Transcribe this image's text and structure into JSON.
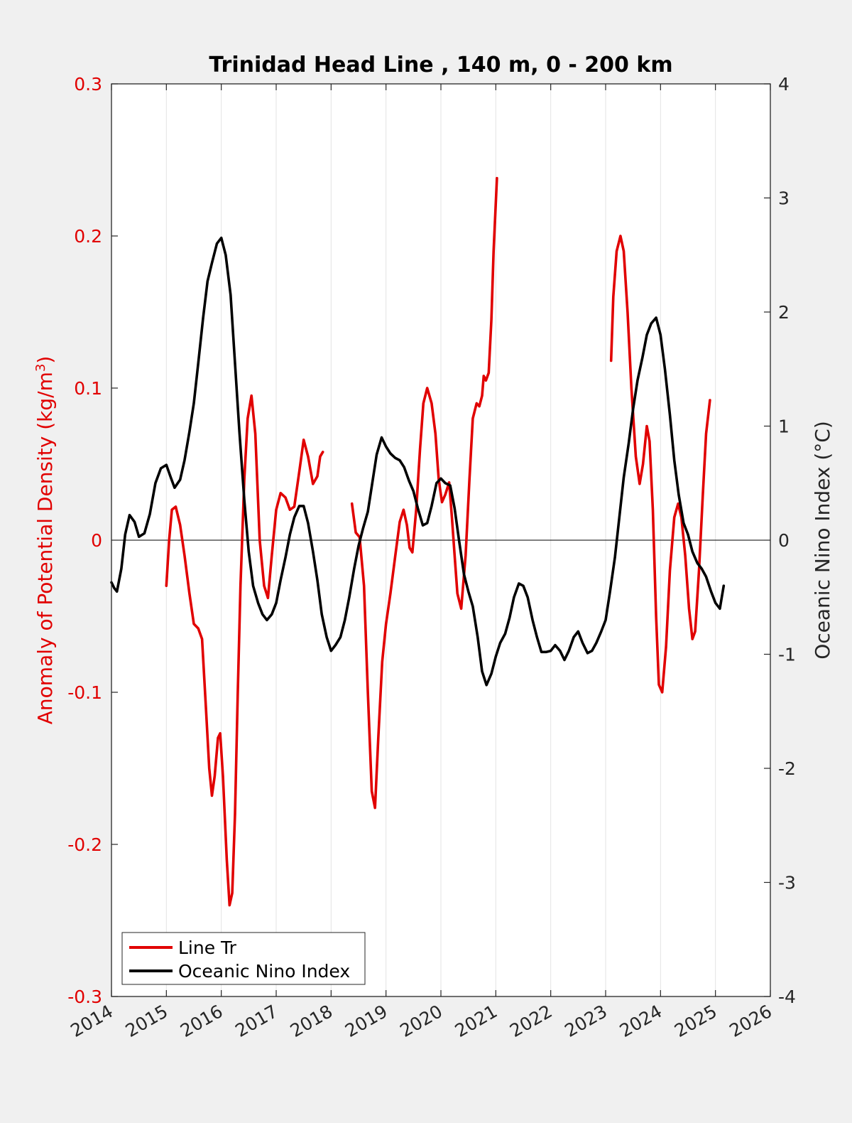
{
  "chart_data": {
    "type": "line",
    "title": "Trinidad Head Line , 140 m, 0 - 200 km",
    "xlim": [
      2014,
      2026
    ],
    "x_ticks": [
      "2014",
      "2015",
      "2016",
      "2017",
      "2018",
      "2019",
      "2020",
      "2021",
      "2022",
      "2023",
      "2024",
      "2025",
      "2026"
    ],
    "y_left": {
      "label_main": "Anomaly of Potential Density (kg/m",
      "label_sup": "3",
      "label_tail": ")",
      "lim": [
        -0.3,
        0.3
      ],
      "ticks": [
        "0.3",
        "0.2",
        "0.1",
        "0",
        "-0.1",
        "-0.2",
        "-0.3"
      ],
      "color": "#e10000"
    },
    "y_right": {
      "label": "Oceanic Nino Index (°C)",
      "lim": [
        -4,
        4
      ],
      "ticks": [
        "4",
        "3",
        "2",
        "1",
        "0",
        "-1",
        "-2",
        "-3",
        "-4"
      ],
      "color": "#000000"
    },
    "grid": "vertical",
    "legend_placement": "bottom-left",
    "series": [
      {
        "name": "Line Tr",
        "axis": "left",
        "color": "#e10000",
        "segments": [
          [
            [
              2015.0,
              -0.03
            ],
            [
              2015.05,
              0.0
            ],
            [
              2015.1,
              0.02
            ],
            [
              2015.17,
              0.022
            ],
            [
              2015.25,
              0.01
            ],
            [
              2015.33,
              -0.01
            ],
            [
              2015.42,
              -0.035
            ],
            [
              2015.5,
              -0.055
            ],
            [
              2015.58,
              -0.058
            ],
            [
              2015.65,
              -0.065
            ],
            [
              2015.72,
              -0.11
            ],
            [
              2015.78,
              -0.15
            ],
            [
              2015.83,
              -0.168
            ],
            [
              2015.88,
              -0.155
            ],
            [
              2015.94,
              -0.13
            ],
            [
              2015.98,
              -0.127
            ],
            [
              2016.03,
              -0.155
            ],
            [
              2016.1,
              -0.21
            ],
            [
              2016.15,
              -0.24
            ],
            [
              2016.2,
              -0.232
            ],
            [
              2016.25,
              -0.18
            ],
            [
              2016.3,
              -0.1
            ],
            [
              2016.35,
              -0.03
            ],
            [
              2016.42,
              0.04
            ],
            [
              2016.48,
              0.08
            ],
            [
              2016.55,
              0.095
            ],
            [
              2016.62,
              0.07
            ],
            [
              2016.7,
              0.0
            ],
            [
              2016.78,
              -0.03
            ],
            [
              2016.85,
              -0.038
            ],
            [
              2016.92,
              -0.01
            ],
            [
              2017.0,
              0.02
            ],
            [
              2017.08,
              0.031
            ],
            [
              2017.17,
              0.028
            ],
            [
              2017.25,
              0.02
            ],
            [
              2017.33,
              0.022
            ],
            [
              2017.42,
              0.045
            ],
            [
              2017.5,
              0.066
            ],
            [
              2017.58,
              0.055
            ],
            [
              2017.67,
              0.037
            ],
            [
              2017.75,
              0.042
            ],
            [
              2017.8,
              0.055
            ],
            [
              2017.85,
              0.058
            ]
          ],
          [
            [
              2018.38,
              0.024
            ],
            [
              2018.45,
              0.005
            ],
            [
              2018.52,
              0.002
            ],
            [
              2018.6,
              -0.03
            ],
            [
              2018.67,
              -0.1
            ],
            [
              2018.74,
              -0.165
            ],
            [
              2018.8,
              -0.176
            ],
            [
              2018.86,
              -0.13
            ],
            [
              2018.93,
              -0.08
            ],
            [
              2019.0,
              -0.055
            ],
            [
              2019.08,
              -0.035
            ],
            [
              2019.17,
              -0.01
            ],
            [
              2019.25,
              0.012
            ],
            [
              2019.32,
              0.02
            ],
            [
              2019.38,
              0.01
            ],
            [
              2019.43,
              -0.005
            ],
            [
              2019.48,
              -0.008
            ],
            [
              2019.55,
              0.02
            ],
            [
              2019.62,
              0.06
            ],
            [
              2019.68,
              0.09
            ],
            [
              2019.75,
              0.1
            ],
            [
              2019.83,
              0.09
            ],
            [
              2019.9,
              0.07
            ],
            [
              2019.96,
              0.04
            ],
            [
              2020.02,
              0.025
            ],
            [
              2020.08,
              0.03
            ],
            [
              2020.15,
              0.038
            ],
            [
              2020.2,
              0.015
            ],
            [
              2020.25,
              -0.01
            ],
            [
              2020.3,
              -0.035
            ],
            [
              2020.37,
              -0.045
            ],
            [
              2020.45,
              -0.01
            ],
            [
              2020.52,
              0.04
            ],
            [
              2020.58,
              0.08
            ],
            [
              2020.65,
              0.09
            ],
            [
              2020.7,
              0.088
            ],
            [
              2020.75,
              0.095
            ],
            [
              2020.78,
              0.108
            ],
            [
              2020.82,
              0.105
            ],
            [
              2020.87,
              0.11
            ],
            [
              2020.92,
              0.145
            ],
            [
              2020.96,
              0.19
            ],
            [
              2021.02,
              0.238
            ]
          ],
          [
            [
              2023.1,
              0.118
            ],
            [
              2023.14,
              0.16
            ],
            [
              2023.2,
              0.19
            ],
            [
              2023.27,
              0.2
            ],
            [
              2023.33,
              0.19
            ],
            [
              2023.4,
              0.15
            ],
            [
              2023.47,
              0.1
            ],
            [
              2023.55,
              0.055
            ],
            [
              2023.62,
              0.037
            ],
            [
              2023.68,
              0.05
            ],
            [
              2023.75,
              0.075
            ],
            [
              2023.8,
              0.065
            ],
            [
              2023.86,
              0.02
            ],
            [
              2023.92,
              -0.05
            ],
            [
              2023.97,
              -0.095
            ],
            [
              2024.03,
              -0.1
            ],
            [
              2024.1,
              -0.07
            ],
            [
              2024.17,
              -0.02
            ],
            [
              2024.25,
              0.015
            ],
            [
              2024.32,
              0.024
            ],
            [
              2024.38,
              0.015
            ],
            [
              2024.45,
              -0.01
            ],
            [
              2024.52,
              -0.045
            ],
            [
              2024.58,
              -0.065
            ],
            [
              2024.63,
              -0.06
            ],
            [
              2024.7,
              -0.02
            ],
            [
              2024.77,
              0.03
            ],
            [
              2024.83,
              0.07
            ],
            [
              2024.9,
              0.092
            ]
          ]
        ]
      },
      {
        "name": "Oceanic Nino Index",
        "axis": "right",
        "color": "#000000",
        "segments": [
          [
            [
              2014.0,
              -0.37
            ],
            [
              2014.05,
              -0.42
            ],
            [
              2014.1,
              -0.45
            ],
            [
              2014.18,
              -0.25
            ],
            [
              2014.25,
              0.05
            ],
            [
              2014.33,
              0.22
            ],
            [
              2014.42,
              0.16
            ],
            [
              2014.5,
              0.03
            ],
            [
              2014.6,
              0.06
            ],
            [
              2014.7,
              0.23
            ],
            [
              2014.8,
              0.5
            ],
            [
              2014.9,
              0.63
            ],
            [
              2015.0,
              0.66
            ],
            [
              2015.08,
              0.55
            ],
            [
              2015.15,
              0.46
            ],
            [
              2015.25,
              0.53
            ],
            [
              2015.33,
              0.7
            ],
            [
              2015.42,
              0.95
            ],
            [
              2015.5,
              1.2
            ],
            [
              2015.58,
              1.55
            ],
            [
              2015.67,
              1.95
            ],
            [
              2015.75,
              2.27
            ],
            [
              2015.83,
              2.43
            ],
            [
              2015.92,
              2.6
            ],
            [
              2016.0,
              2.65
            ],
            [
              2016.08,
              2.5
            ],
            [
              2016.17,
              2.15
            ],
            [
              2016.25,
              1.55
            ],
            [
              2016.33,
              0.95
            ],
            [
              2016.42,
              0.35
            ],
            [
              2016.5,
              -0.1
            ],
            [
              2016.58,
              -0.4
            ],
            [
              2016.67,
              -0.55
            ],
            [
              2016.75,
              -0.65
            ],
            [
              2016.83,
              -0.7
            ],
            [
              2016.92,
              -0.65
            ],
            [
              2017.0,
              -0.55
            ],
            [
              2017.08,
              -0.35
            ],
            [
              2017.17,
              -0.15
            ],
            [
              2017.25,
              0.05
            ],
            [
              2017.33,
              0.2
            ],
            [
              2017.42,
              0.3
            ],
            [
              2017.5,
              0.3
            ],
            [
              2017.58,
              0.15
            ],
            [
              2017.67,
              -0.1
            ],
            [
              2017.75,
              -0.35
            ],
            [
              2017.83,
              -0.65
            ],
            [
              2017.92,
              -0.85
            ],
            [
              2018.0,
              -0.97
            ],
            [
              2018.08,
              -0.92
            ],
            [
              2018.17,
              -0.85
            ],
            [
              2018.25,
              -0.7
            ],
            [
              2018.33,
              -0.5
            ],
            [
              2018.42,
              -0.25
            ],
            [
              2018.5,
              -0.05
            ],
            [
              2018.58,
              0.1
            ],
            [
              2018.67,
              0.25
            ],
            [
              2018.75,
              0.5
            ],
            [
              2018.83,
              0.75
            ],
            [
              2018.92,
              0.9
            ],
            [
              2019.0,
              0.82
            ],
            [
              2019.08,
              0.76
            ],
            [
              2019.17,
              0.72
            ],
            [
              2019.25,
              0.7
            ],
            [
              2019.33,
              0.64
            ],
            [
              2019.42,
              0.52
            ],
            [
              2019.5,
              0.43
            ],
            [
              2019.58,
              0.28
            ],
            [
              2019.67,
              0.13
            ],
            [
              2019.75,
              0.15
            ],
            [
              2019.83,
              0.3
            ],
            [
              2019.92,
              0.5
            ],
            [
              2020.0,
              0.54
            ],
            [
              2020.08,
              0.5
            ],
            [
              2020.17,
              0.48
            ],
            [
              2020.25,
              0.28
            ],
            [
              2020.33,
              0.0
            ],
            [
              2020.42,
              -0.3
            ],
            [
              2020.5,
              -0.45
            ],
            [
              2020.58,
              -0.58
            ],
            [
              2020.67,
              -0.85
            ],
            [
              2020.75,
              -1.15
            ],
            [
              2020.83,
              -1.27
            ],
            [
              2020.92,
              -1.17
            ],
            [
              2021.0,
              -1.02
            ],
            [
              2021.08,
              -0.9
            ],
            [
              2021.17,
              -0.82
            ],
            [
              2021.25,
              -0.68
            ],
            [
              2021.33,
              -0.5
            ],
            [
              2021.42,
              -0.38
            ],
            [
              2021.5,
              -0.4
            ],
            [
              2021.58,
              -0.5
            ],
            [
              2021.67,
              -0.7
            ],
            [
              2021.75,
              -0.85
            ],
            [
              2021.83,
              -0.98
            ],
            [
              2021.92,
              -0.98
            ],
            [
              2022.0,
              -0.97
            ],
            [
              2022.08,
              -0.92
            ],
            [
              2022.17,
              -0.97
            ],
            [
              2022.25,
              -1.05
            ],
            [
              2022.33,
              -0.97
            ],
            [
              2022.42,
              -0.85
            ],
            [
              2022.5,
              -0.8
            ],
            [
              2022.58,
              -0.9
            ],
            [
              2022.67,
              -0.99
            ],
            [
              2022.75,
              -0.97
            ],
            [
              2022.83,
              -0.9
            ],
            [
              2022.92,
              -0.8
            ],
            [
              2023.0,
              -0.7
            ],
            [
              2023.08,
              -0.45
            ],
            [
              2023.17,
              -0.15
            ],
            [
              2023.25,
              0.2
            ],
            [
              2023.33,
              0.55
            ],
            [
              2023.42,
              0.85
            ],
            [
              2023.5,
              1.15
            ],
            [
              2023.58,
              1.4
            ],
            [
              2023.67,
              1.6
            ],
            [
              2023.75,
              1.8
            ],
            [
              2023.83,
              1.9
            ],
            [
              2023.92,
              1.95
            ],
            [
              2024.0,
              1.8
            ],
            [
              2024.08,
              1.5
            ],
            [
              2024.17,
              1.1
            ],
            [
              2024.25,
              0.7
            ],
            [
              2024.33,
              0.4
            ],
            [
              2024.42,
              0.15
            ],
            [
              2024.5,
              0.05
            ],
            [
              2024.58,
              -0.1
            ],
            [
              2024.67,
              -0.2
            ],
            [
              2024.75,
              -0.25
            ],
            [
              2024.83,
              -0.32
            ],
            [
              2024.92,
              -0.45
            ],
            [
              2025.0,
              -0.55
            ],
            [
              2025.08,
              -0.6
            ],
            [
              2025.15,
              -0.4
            ]
          ]
        ]
      }
    ]
  }
}
